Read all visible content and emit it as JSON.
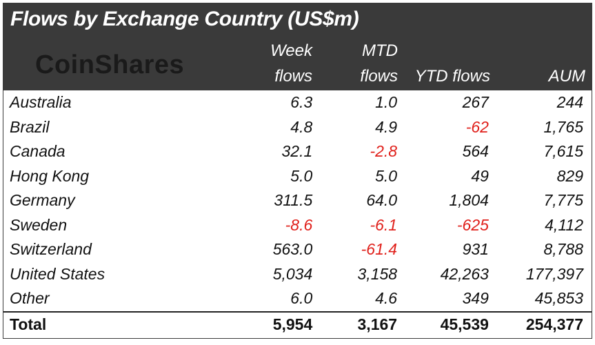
{
  "title": "Flows by Exchange Country (US$m)",
  "logo_text": "CoinShares",
  "columns": {
    "week": [
      "Week",
      "flows"
    ],
    "mtd": [
      "MTD",
      "flows"
    ],
    "ytd": "YTD flows",
    "aum": "AUM"
  },
  "rows": [
    {
      "country": "Australia",
      "week": "6.3",
      "mtd": "1.0",
      "ytd": "267",
      "aum": "244"
    },
    {
      "country": "Brazil",
      "week": "4.8",
      "mtd": "4.9",
      "ytd": "-62",
      "aum": "1,765"
    },
    {
      "country": "Canada",
      "week": "32.1",
      "mtd": "-2.8",
      "ytd": "564",
      "aum": "7,615"
    },
    {
      "country": "Hong Kong",
      "week": "5.0",
      "mtd": "5.0",
      "ytd": "49",
      "aum": "829"
    },
    {
      "country": "Germany",
      "week": "311.5",
      "mtd": "64.0",
      "ytd": "1,804",
      "aum": "7,775"
    },
    {
      "country": "Sweden",
      "week": "-8.6",
      "mtd": "-6.1",
      "ytd": "-625",
      "aum": "4,112"
    },
    {
      "country": "Switzerland",
      "week": "563.0",
      "mtd": "-61.4",
      "ytd": "931",
      "aum": "8,788"
    },
    {
      "country": "United States",
      "week": "5,034",
      "mtd": "3,158",
      "ytd": "42,263",
      "aum": "177,397"
    },
    {
      "country": "Other",
      "week": "6.0",
      "mtd": "4.6",
      "ytd": "349",
      "aum": "45,853"
    }
  ],
  "total": {
    "label": "Total",
    "week": "5,954",
    "mtd": "3,167",
    "ytd": "45,539",
    "aum": "254,377"
  },
  "colors": {
    "header_bg": "#3a3a3a",
    "negative": "#e0201b"
  }
}
